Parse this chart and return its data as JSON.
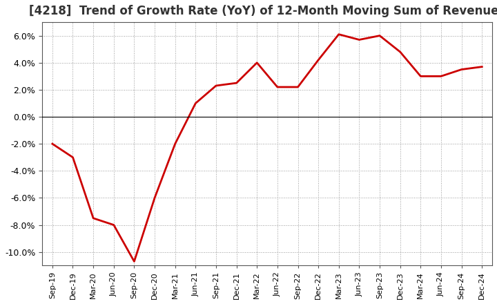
{
  "title": "[4218]  Trend of Growth Rate (YoY) of 12-Month Moving Sum of Revenues",
  "title_fontsize": 12,
  "line_color": "#cc0000",
  "line_width": 2.0,
  "background_color": "#ffffff",
  "plot_bg_color": "#ffffff",
  "grid_color": "#999999",
  "ylim": [
    -0.11,
    0.07
  ],
  "yticks": [
    -0.1,
    -0.08,
    -0.06,
    -0.04,
    -0.02,
    0.0,
    0.02,
    0.04,
    0.06
  ],
  "values": [
    -0.02,
    -0.03,
    -0.075,
    -0.08,
    -0.107,
    -0.06,
    -0.02,
    0.01,
    0.023,
    0.025,
    0.04,
    0.022,
    0.022,
    0.042,
    0.061,
    0.057,
    0.06,
    0.048,
    0.03,
    0.03,
    0.035,
    0.037
  ],
  "xtick_labels": [
    "Sep-19",
    "Dec-19",
    "Mar-20",
    "Jun-20",
    "Sep-20",
    "Dec-20",
    "Mar-21",
    "Jun-21",
    "Sep-21",
    "Dec-21",
    "Mar-22",
    "Jun-22",
    "Sep-22",
    "Dec-22",
    "Mar-23",
    "Jun-23",
    "Sep-23",
    "Dec-23",
    "Mar-24",
    "Jun-24",
    "Sep-24",
    "Dec-24"
  ]
}
